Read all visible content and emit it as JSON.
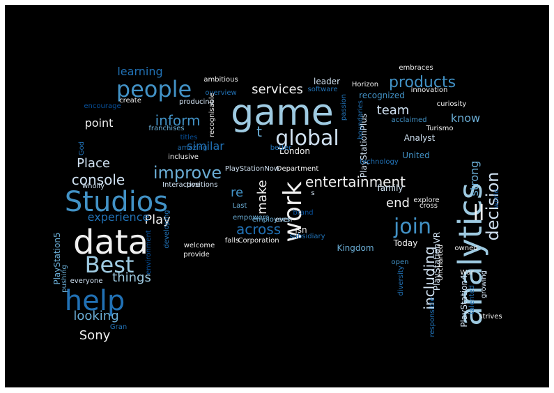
{
  "colors": {
    "background": "#000000",
    "frame": "#ffffff",
    "palette": [
      "#f0f0f0",
      "#cfe0f0",
      "#9ecae1",
      "#6baed6",
      "#4292c6",
      "#2171b5",
      "#08519c"
    ]
  },
  "words": [
    {
      "text": "game",
      "size": 52,
      "color": "#9ecae1",
      "rot": 0
    },
    {
      "text": "data",
      "size": 48,
      "color": "#f0f0f0",
      "rot": 0
    },
    {
      "text": "analytics",
      "size": 46,
      "color": "#9ecae1",
      "rot": -90
    },
    {
      "text": "Studios",
      "size": 40,
      "color": "#4292c6",
      "rot": 0
    },
    {
      "text": "help",
      "size": 40,
      "color": "#2171b5",
      "rot": 0
    },
    {
      "text": "work",
      "size": 36,
      "color": "#f0f0f0",
      "rot": -90
    },
    {
      "text": "people",
      "size": 32,
      "color": "#4292c6",
      "rot": 0
    },
    {
      "text": "Best",
      "size": 32,
      "color": "#9ecae1",
      "rot": 0
    },
    {
      "text": "global",
      "size": 30,
      "color": "#cfe0f0",
      "rot": 0
    },
    {
      "text": "join",
      "size": 30,
      "color": "#4292c6",
      "rot": 0
    },
    {
      "text": "ll",
      "size": 30,
      "color": "#f0f0f0",
      "rot": 0
    },
    {
      "text": "decision",
      "size": 24,
      "color": "#cfe0f0",
      "rot": -90
    },
    {
      "text": "improve",
      "size": 24,
      "color": "#6baed6",
      "rot": 0
    },
    {
      "text": "products",
      "size": 22,
      "color": "#4292c6",
      "rot": 0
    },
    {
      "text": "inform",
      "size": 20,
      "color": "#4292c6",
      "rot": 0
    },
    {
      "text": "console",
      "size": 20,
      "color": "#cfe0f0",
      "rot": 0
    },
    {
      "text": "across",
      "size": 20,
      "color": "#2171b5",
      "rot": 0
    },
    {
      "text": "entertainment",
      "size": 20,
      "color": "#f0f0f0",
      "rot": 0
    },
    {
      "text": "including",
      "size": 20,
      "color": "#cfe0f0",
      "rot": -90
    },
    {
      "text": "team",
      "size": 18,
      "color": "#cfe0f0",
      "rot": 0
    },
    {
      "text": "services",
      "size": 18,
      "color": "#f0f0f0",
      "rot": 0
    },
    {
      "text": "Place",
      "size": 18,
      "color": "#cfe0f0",
      "rot": 0
    },
    {
      "text": "Play",
      "size": 18,
      "color": "#f0f0f0",
      "rot": 0
    },
    {
      "text": "Sony",
      "size": 18,
      "color": "#f0f0f0",
      "rot": 0
    },
    {
      "text": "looking",
      "size": 18,
      "color": "#6baed6",
      "rot": 0
    },
    {
      "text": "things",
      "size": 18,
      "color": "#9ecae1",
      "rot": 0
    },
    {
      "text": "make",
      "size": 18,
      "color": "#f0f0f0",
      "rot": -90
    },
    {
      "text": "end",
      "size": 18,
      "color": "#f0f0f0",
      "rot": 0
    },
    {
      "text": "re",
      "size": 18,
      "color": "#4292c6",
      "rot": 0
    },
    {
      "text": "t",
      "size": 20,
      "color": "#6baed6",
      "rot": 0
    },
    {
      "text": "learning",
      "size": 16,
      "color": "#2171b5",
      "rot": 0
    },
    {
      "text": "point",
      "size": 16,
      "color": "#f0f0f0",
      "rot": 0
    },
    {
      "text": "similar",
      "size": 16,
      "color": "#2171b5",
      "rot": 0
    },
    {
      "text": "experience",
      "size": 16,
      "color": "#2171b5",
      "rot": 0
    },
    {
      "text": "know",
      "size": 16,
      "color": "#6baed6",
      "rot": 0
    },
    {
      "text": "strong",
      "size": 16,
      "color": "#6baed6",
      "rot": -90
    },
    {
      "text": "PlayStation4",
      "size": 12,
      "color": "#cfe0f0",
      "rot": -90
    },
    {
      "text": "Analyst",
      "size": 12,
      "color": "#cfe0f0",
      "rot": 0
    },
    {
      "text": "United",
      "size": 12,
      "color": "#4292c6",
      "rot": 0
    },
    {
      "text": "Kingdom",
      "size": 12,
      "color": "#6baed6",
      "rot": 0
    },
    {
      "text": "isn",
      "size": 12,
      "color": "#f0f0f0",
      "rot": 0
    },
    {
      "text": "Today",
      "size": 12,
      "color": "#f0f0f0",
      "rot": 0
    },
    {
      "text": "family",
      "size": 12,
      "color": "#cfe0f0",
      "rot": 0
    },
    {
      "text": "London",
      "size": 12,
      "color": "#f0f0f0",
      "rot": 0
    },
    {
      "text": "recognized",
      "size": 12,
      "color": "#4292c6",
      "rot": 0
    },
    {
      "text": "leader",
      "size": 12,
      "color": "#cfe0f0",
      "rot": 0
    },
    {
      "text": "PlayStationPlus",
      "size": 12,
      "color": "#cfe0f0",
      "rot": -90
    },
    {
      "text": "PlayStation5",
      "size": 12,
      "color": "#6baed6",
      "rot": -90
    },
    {
      "text": "PlayStationVR",
      "size": 12,
      "color": "#cfe0f0",
      "rot": -90
    },
    {
      "text": "Department",
      "size": 10,
      "color": "#f0f0f0",
      "rot": 0
    },
    {
      "text": "PlayStationNow",
      "size": 10,
      "color": "#cfe0f0",
      "rot": 0
    },
    {
      "text": "Corporation",
      "size": 10,
      "color": "#f0f0f0",
      "rot": 0
    },
    {
      "text": "subsidiary",
      "size": 10,
      "color": "#2171b5",
      "rot": 0
    },
    {
      "text": "falls",
      "size": 10,
      "color": "#f0f0f0",
      "rot": 0
    },
    {
      "text": "Horizon",
      "size": 10,
      "color": "#f0f0f0",
      "rot": 0
    },
    {
      "text": "embraces",
      "size": 10,
      "color": "#f0f0f0",
      "rot": 0
    },
    {
      "text": "innovation",
      "size": 10,
      "color": "#f0f0f0",
      "rot": 0
    },
    {
      "text": "curiosity",
      "size": 10,
      "color": "#f0f0f0",
      "rot": 0
    },
    {
      "text": "acclaimed",
      "size": 10,
      "color": "#4292c6",
      "rot": 0
    },
    {
      "text": "Turismo",
      "size": 10,
      "color": "#f0f0f0",
      "rot": 0
    },
    {
      "text": "technology",
      "size": 10,
      "color": "#2171b5",
      "rot": 0
    },
    {
      "text": "explore",
      "size": 10,
      "color": "#f0f0f0",
      "rot": 0
    },
    {
      "text": "cross",
      "size": 10,
      "color": "#f0f0f0",
      "rot": 0
    },
    {
      "text": "owned",
      "size": 10,
      "color": "#f0f0f0",
      "rot": 0
    },
    {
      "text": "Uncharted",
      "size": 10,
      "color": "#f0f0f0",
      "rot": -90
    },
    {
      "text": "War",
      "size": 10,
      "color": "#f0f0f0",
      "rot": 0
    },
    {
      "text": "growing",
      "size": 10,
      "color": "#cfe0f0",
      "rot": -90
    },
    {
      "text": "strives",
      "size": 10,
      "color": "#f0f0f0",
      "rot": 0
    },
    {
      "text": "talented",
      "size": 10,
      "color": "#2171b5",
      "rot": -90
    },
    {
      "text": "world",
      "size": 10,
      "color": "#08519c",
      "rot": -90
    },
    {
      "text": "diversity",
      "size": 10,
      "color": "#2171b5",
      "rot": -90
    },
    {
      "text": "responsible",
      "size": 10,
      "color": "#2171b5",
      "rot": -90
    },
    {
      "text": "open",
      "size": 10,
      "color": "#4292c6",
      "rot": 0
    },
    {
      "text": "ambitious",
      "size": 10,
      "color": "#f0f0f0",
      "rot": 0
    },
    {
      "text": "overview",
      "size": 10,
      "color": "#2171b5",
      "rot": 0
    },
    {
      "text": "producing",
      "size": 10,
      "color": "#cfe0f0",
      "rot": 0
    },
    {
      "text": "create",
      "size": 10,
      "color": "#f0f0f0",
      "rot": 0
    },
    {
      "text": "encourage",
      "size": 10,
      "color": "#08519c",
      "rot": 0
    },
    {
      "text": "franchises",
      "size": 10,
      "color": "#6baed6",
      "rot": 0
    },
    {
      "text": "titles",
      "size": 10,
      "color": "#08519c",
      "rot": 0
    },
    {
      "text": "amazing",
      "size": 10,
      "color": "#2171b5",
      "rot": 0
    },
    {
      "text": "inclusive",
      "size": 10,
      "color": "#f0f0f0",
      "rot": 0
    },
    {
      "text": "recognisable",
      "size": 10,
      "color": "#f0f0f0",
      "rot": -90
    },
    {
      "text": "software",
      "size": 10,
      "color": "#2171b5",
      "rot": 0
    },
    {
      "text": "passion",
      "size": 10,
      "color": "#2171b5",
      "rot": -90
    },
    {
      "text": "boundaries",
      "size": 10,
      "color": "#2171b5",
      "rot": -90
    },
    {
      "text": "better",
      "size": 10,
      "color": "#2171b5",
      "rot": 0
    },
    {
      "text": "God",
      "size": 10,
      "color": "#2171b5",
      "rot": -90
    },
    {
      "text": "wholly",
      "size": 10,
      "color": "#cfe0f0",
      "rot": 0
    },
    {
      "text": "Interactive",
      "size": 10,
      "color": "#cfe0f0",
      "rot": 0
    },
    {
      "text": "positions",
      "size": 10,
      "color": "#cfe0f0",
      "rot": 0
    },
    {
      "text": "Last",
      "size": 10,
      "color": "#6baed6",
      "rot": 0
    },
    {
      "text": "empowers",
      "size": 10,
      "color": "#6baed6",
      "rot": 0
    },
    {
      "text": "employees",
      "size": 10,
      "color": "#6baed6",
      "rot": 0
    },
    {
      "text": "even",
      "size": 10,
      "color": "#cfe0f0",
      "rot": 0
    },
    {
      "text": "brand",
      "size": 10,
      "color": "#08519c",
      "rot": 0
    },
    {
      "text": "s",
      "size": 10,
      "color": "#cfe0f0",
      "rot": 0
    },
    {
      "text": "developing",
      "size": 10,
      "color": "#2171b5",
      "rot": -90
    },
    {
      "text": "environment",
      "size": 10,
      "color": "#08519c",
      "rot": -90
    },
    {
      "text": "welcome",
      "size": 10,
      "color": "#f0f0f0",
      "rot": 0
    },
    {
      "text": "provide",
      "size": 10,
      "color": "#f0f0f0",
      "rot": 0
    },
    {
      "text": "pushing",
      "size": 10,
      "color": "#6baed6",
      "rot": -90
    },
    {
      "text": "everyone",
      "size": 10,
      "color": "#cfe0f0",
      "rot": 0
    },
    {
      "text": "Gran",
      "size": 10,
      "color": "#2171b5",
      "rot": 0
    }
  ]
}
